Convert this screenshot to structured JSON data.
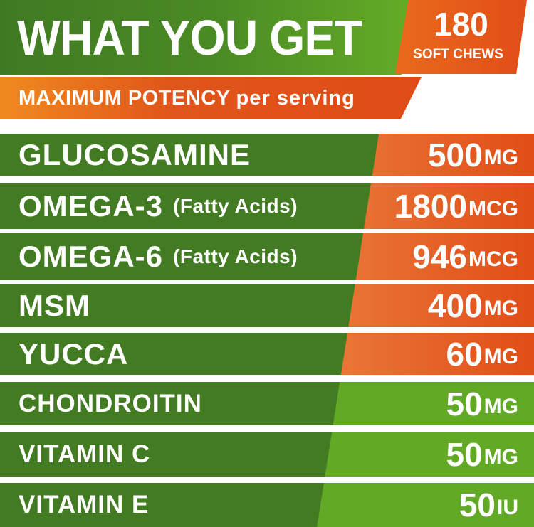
{
  "header": {
    "title": "WHAT YOU GET",
    "badge_count": "180",
    "badge_label": "SOFT CHEWS",
    "subtitle_bold": "MAXIMUM POTENCY",
    "subtitle_rest": "per serving"
  },
  "colors": {
    "dark_green": "#427b22",
    "light_green": "#62aa26",
    "orange": "#e14d17",
    "light_orange": "#ef9654"
  },
  "ingredients": [
    {
      "name": "GLUCOSAMINE",
      "note": "",
      "amount": "500",
      "unit": "MG",
      "style": "orange"
    },
    {
      "name": "OMEGA-3",
      "note": "(Fatty Acids)",
      "amount": "1800",
      "unit": "MCG",
      "style": "orange"
    },
    {
      "name": "OMEGA-6",
      "note": "(Fatty Acids)",
      "amount": "946",
      "unit": "MCG",
      "style": "orange"
    },
    {
      "name": "MSM",
      "note": "",
      "amount": "400",
      "unit": "MG",
      "style": "orange"
    },
    {
      "name": "YUCCA",
      "note": "",
      "amount": "60",
      "unit": "MG",
      "style": "orange"
    },
    {
      "name": "CHONDROITIN",
      "note": "",
      "amount": "50",
      "unit": "MG",
      "style": "green"
    },
    {
      "name": "VITAMIN C",
      "note": "",
      "amount": "50",
      "unit": "MG",
      "style": "green"
    },
    {
      "name": "VITAMIN E",
      "note": "",
      "amount": "50",
      "unit": "IU",
      "style": "green"
    }
  ]
}
